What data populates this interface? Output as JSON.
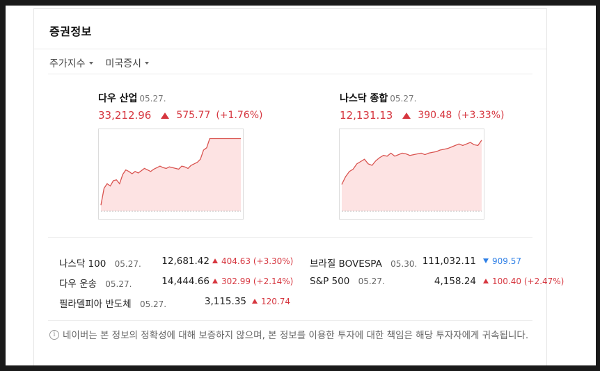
{
  "card": {
    "title": "증권정보"
  },
  "tabs": [
    {
      "label": "주가지수"
    },
    {
      "label": "미국증시"
    }
  ],
  "indices": [
    {
      "name": "다우 산업",
      "date": "05.27.",
      "value": "33,212.96",
      "change": "575.77",
      "percent": "(+1.76%)",
      "direction": "up",
      "chart_data": {
        "type": "area",
        "color": "#d9534f",
        "fill": "#fde3e3",
        "y": [
          0.08,
          0.3,
          0.36,
          0.33,
          0.4,
          0.41,
          0.36,
          0.48,
          0.54,
          0.52,
          0.49,
          0.52,
          0.5,
          0.53,
          0.56,
          0.54,
          0.52,
          0.55,
          0.57,
          0.59,
          0.57,
          0.56,
          0.58,
          0.57,
          0.56,
          0.55,
          0.59,
          0.58,
          0.56,
          0.6,
          0.62,
          0.64,
          0.68,
          0.8,
          0.83,
          0.95,
          0.95,
          0.95,
          0.95,
          0.95,
          0.95,
          0.95,
          0.95,
          0.95,
          0.95,
          0.95
        ]
      }
    },
    {
      "name": "나스닥 종합",
      "date": "05.27.",
      "value": "12,131.13",
      "change": "390.48",
      "percent": "(+3.33%)",
      "direction": "up",
      "chart_data": {
        "type": "area",
        "color": "#d9534f",
        "fill": "#fde3e3",
        "y": [
          0.35,
          0.45,
          0.52,
          0.55,
          0.62,
          0.65,
          0.68,
          0.62,
          0.6,
          0.66,
          0.7,
          0.73,
          0.72,
          0.76,
          0.72,
          0.74,
          0.76,
          0.75,
          0.73,
          0.74,
          0.75,
          0.76,
          0.74,
          0.76,
          0.77,
          0.78,
          0.8,
          0.81,
          0.82,
          0.84,
          0.86,
          0.88,
          0.86,
          0.88,
          0.9,
          0.87,
          0.86,
          0.93
        ]
      }
    }
  ],
  "list": {
    "left": [
      {
        "name": "나스닥 100",
        "date": "05.27.",
        "price": "12,681.42",
        "change": "404.63",
        "percent": "(+3.30%)",
        "direction": "up"
      },
      {
        "name": "다우 운송",
        "date": "05.27.",
        "price": "14,444.66",
        "change": "302.99",
        "percent": "(+2.14%)",
        "direction": "up"
      },
      {
        "name": "필라델피아 반도체",
        "date": "05.27.",
        "price": "3,115.35",
        "change": "120.74",
        "percent": "",
        "direction": "up"
      }
    ],
    "right": [
      {
        "name": "브라질 BOVESPA",
        "date": "05.30.",
        "price": "111,032.11",
        "change": "909.57",
        "percent": "",
        "direction": "down"
      },
      {
        "name": "S&P 500",
        "date": "05.27.",
        "price": "4,158.24",
        "change": "100.40",
        "percent": "(+2.47%)",
        "direction": "up"
      }
    ]
  },
  "notice": {
    "icon": "info-icon",
    "text": "네이버는 본 정보의 정확성에 대해 보증하지 않으며, 본 정보를 이용한 투자에 대한 책임은 해당 투자자에게 귀속됩니다."
  },
  "colors": {
    "up": "#d6363f",
    "down": "#2d7fe6"
  }
}
